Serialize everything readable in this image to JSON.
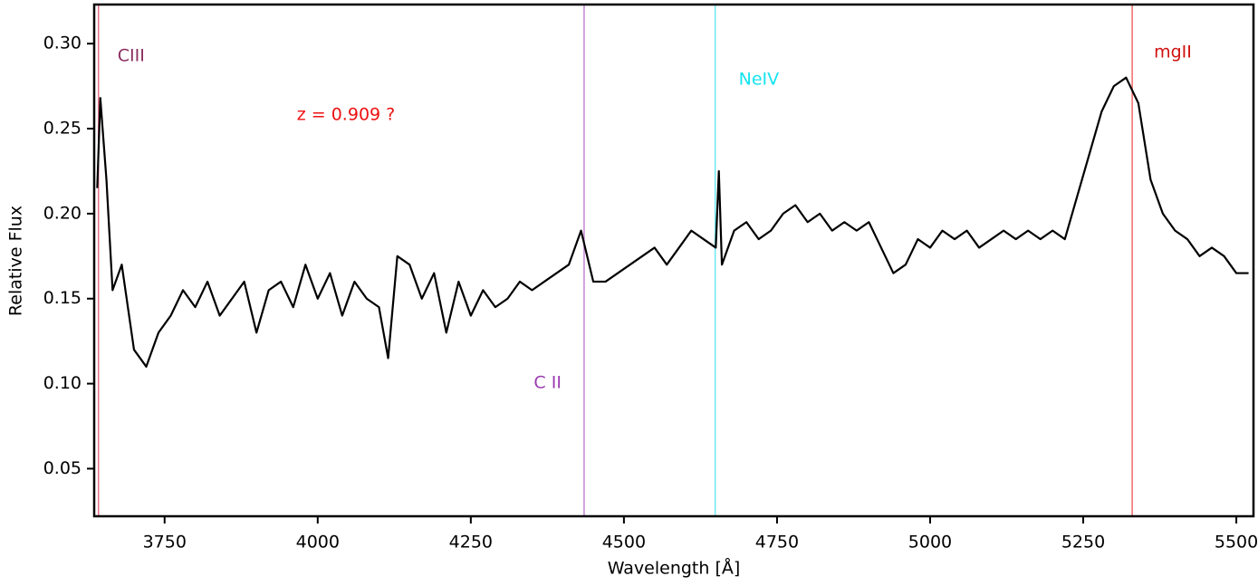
{
  "chart_data": {
    "type": "line",
    "xlabel": "Wavelength [Å]",
    "ylabel": "Relative Flux",
    "color": "#000000",
    "x": [
      3640,
      3645,
      3655,
      3665,
      3680,
      3700,
      3720,
      3740,
      3760,
      3780,
      3800,
      3820,
      3840,
      3860,
      3880,
      3900,
      3920,
      3940,
      3960,
      3980,
      4000,
      4020,
      4040,
      4060,
      4080,
      4100,
      4115,
      4130,
      4150,
      4170,
      4190,
      4210,
      4230,
      4250,
      4270,
      4290,
      4310,
      4330,
      4350,
      4370,
      4390,
      4410,
      4430,
      4450,
      4470,
      4490,
      4510,
      4530,
      4550,
      4570,
      4590,
      4610,
      4630,
      4650,
      4655,
      4660,
      4680,
      4700,
      4720,
      4740,
      4760,
      4780,
      4800,
      4820,
      4840,
      4860,
      4880,
      4900,
      4920,
      4940,
      4960,
      4980,
      5000,
      5020,
      5040,
      5060,
      5080,
      5100,
      5120,
      5140,
      5160,
      5180,
      5200,
      5220,
      5240,
      5260,
      5280,
      5300,
      5320,
      5340,
      5360,
      5380,
      5400,
      5420,
      5440,
      5460,
      5480,
      5500,
      5520
    ],
    "values": [
      0.215,
      0.268,
      0.22,
      0.155,
      0.17,
      0.12,
      0.11,
      0.13,
      0.14,
      0.155,
      0.145,
      0.16,
      0.14,
      0.15,
      0.16,
      0.13,
      0.155,
      0.16,
      0.145,
      0.17,
      0.15,
      0.165,
      0.14,
      0.16,
      0.15,
      0.145,
      0.115,
      0.175,
      0.17,
      0.15,
      0.165,
      0.13,
      0.16,
      0.14,
      0.155,
      0.145,
      0.15,
      0.16,
      0.155,
      0.16,
      0.165,
      0.17,
      0.19,
      0.16,
      0.16,
      0.165,
      0.17,
      0.175,
      0.18,
      0.17,
      0.18,
      0.19,
      0.185,
      0.18,
      0.225,
      0.17,
      0.19,
      0.195,
      0.185,
      0.19,
      0.2,
      0.205,
      0.195,
      0.2,
      0.19,
      0.195,
      0.19,
      0.195,
      0.18,
      0.165,
      0.17,
      0.185,
      0.18,
      0.19,
      0.185,
      0.19,
      0.18,
      0.185,
      0.19,
      0.185,
      0.19,
      0.185,
      0.19,
      0.185,
      0.21,
      0.235,
      0.26,
      0.275,
      0.28,
      0.265,
      0.22,
      0.2,
      0.19,
      0.185,
      0.175,
      0.18,
      0.175,
      0.165,
      0.165
    ],
    "xlim": [
      3635,
      5528
    ],
    "ylim": [
      0.022,
      0.323
    ],
    "xticks": [
      3750,
      4000,
      4250,
      4500,
      4750,
      5000,
      5250,
      5500
    ],
    "yticks": [
      0.05,
      {
        "value": 0.1,
        "label": "0.10"
      },
      0.15,
      {
        "value": 0.2,
        "label": "0.20"
      },
      0.25,
      {
        "value": 0.3,
        "label": "0.30"
      }
    ],
    "vlines": [
      {
        "label": "CIII",
        "x": 3642,
        "color": "#e8728c",
        "label_color": "#8b2d5e"
      },
      {
        "label": "C II",
        "x": 4435,
        "color": "#c583d6",
        "label_color": "#9b3bb0"
      },
      {
        "label": "NeIV",
        "x": 4649,
        "color": "#6ee8f0",
        "label_color": "#14e4f0"
      },
      {
        "label": "mgII",
        "x": 5330,
        "color": "#f06a6a",
        "label_color": "#d01010"
      }
    ],
    "annotation": {
      "text": "z = 0.909 ?",
      "color": "#ee1111"
    }
  }
}
